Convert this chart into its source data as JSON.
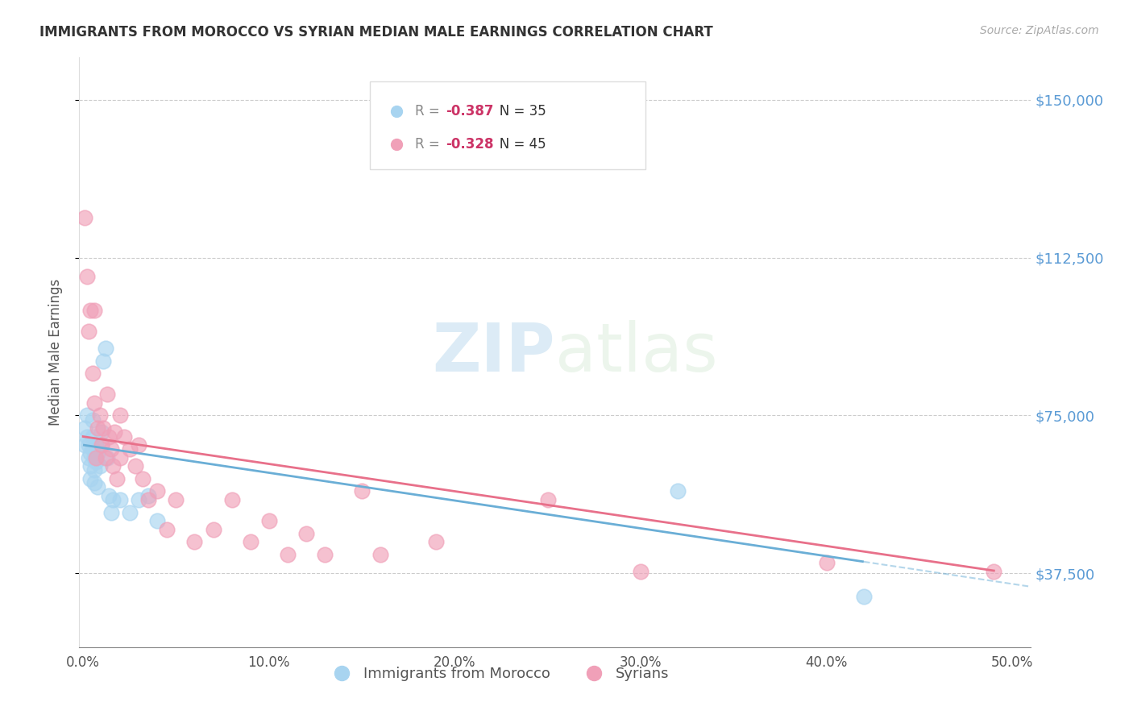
{
  "title": "IMMIGRANTS FROM MOROCCO VS SYRIAN MEDIAN MALE EARNINGS CORRELATION CHART",
  "source": "Source: ZipAtlas.com",
  "ylabel": "Median Male Earnings",
  "ytick_labels": [
    "$37,500",
    "$75,000",
    "$112,500",
    "$150,000"
  ],
  "ytick_values": [
    37500,
    75000,
    112500,
    150000
  ],
  "xtick_labels": [
    "0.0%",
    "10.0%",
    "20.0%",
    "30.0%",
    "40.0%",
    "50.0%"
  ],
  "xtick_values": [
    0.0,
    0.1,
    0.2,
    0.3,
    0.4,
    0.5
  ],
  "xlim": [
    -0.002,
    0.51
  ],
  "ylim": [
    20000,
    160000
  ],
  "morocco_color": "#a8d4f0",
  "syrian_color": "#f0a0b8",
  "morocco_R": -0.387,
  "morocco_N": 35,
  "syrian_R": -0.328,
  "syrian_N": 45,
  "morocco_line_color": "#6aaed6",
  "syrian_line_color": "#e8708a",
  "legend_label_morocco": "Immigrants from Morocco",
  "legend_label_syrian": "Syrians",
  "morocco_x": [
    0.001,
    0.001,
    0.002,
    0.002,
    0.003,
    0.003,
    0.004,
    0.004,
    0.004,
    0.005,
    0.005,
    0.005,
    0.006,
    0.006,
    0.006,
    0.007,
    0.007,
    0.008,
    0.008,
    0.009,
    0.01,
    0.01,
    0.011,
    0.012,
    0.013,
    0.014,
    0.015,
    0.016,
    0.02,
    0.025,
    0.03,
    0.035,
    0.04,
    0.32,
    0.42
  ],
  "morocco_y": [
    68000,
    72000,
    70000,
    75000,
    65000,
    68000,
    66000,
    63000,
    60000,
    74000,
    70000,
    67000,
    65000,
    62000,
    59000,
    68000,
    64000,
    66000,
    58000,
    63000,
    71000,
    68000,
    88000,
    91000,
    65000,
    56000,
    52000,
    55000,
    55000,
    52000,
    55000,
    56000,
    50000,
    57000,
    32000
  ],
  "syrian_x": [
    0.001,
    0.002,
    0.003,
    0.004,
    0.005,
    0.006,
    0.007,
    0.008,
    0.009,
    0.01,
    0.011,
    0.012,
    0.013,
    0.014,
    0.015,
    0.016,
    0.017,
    0.018,
    0.02,
    0.022,
    0.025,
    0.028,
    0.03,
    0.032,
    0.035,
    0.04,
    0.045,
    0.05,
    0.06,
    0.07,
    0.08,
    0.09,
    0.1,
    0.11,
    0.12,
    0.13,
    0.15,
    0.16,
    0.19,
    0.25,
    0.3,
    0.4,
    0.49,
    0.006,
    0.02
  ],
  "syrian_y": [
    122000,
    108000,
    95000,
    100000,
    85000,
    78000,
    65000,
    72000,
    75000,
    68000,
    72000,
    65000,
    80000,
    70000,
    67000,
    63000,
    71000,
    60000,
    65000,
    70000,
    67000,
    63000,
    68000,
    60000,
    55000,
    57000,
    48000,
    55000,
    45000,
    48000,
    55000,
    45000,
    50000,
    42000,
    47000,
    42000,
    57000,
    42000,
    45000,
    55000,
    38000,
    40000,
    38000,
    100000,
    75000
  ]
}
